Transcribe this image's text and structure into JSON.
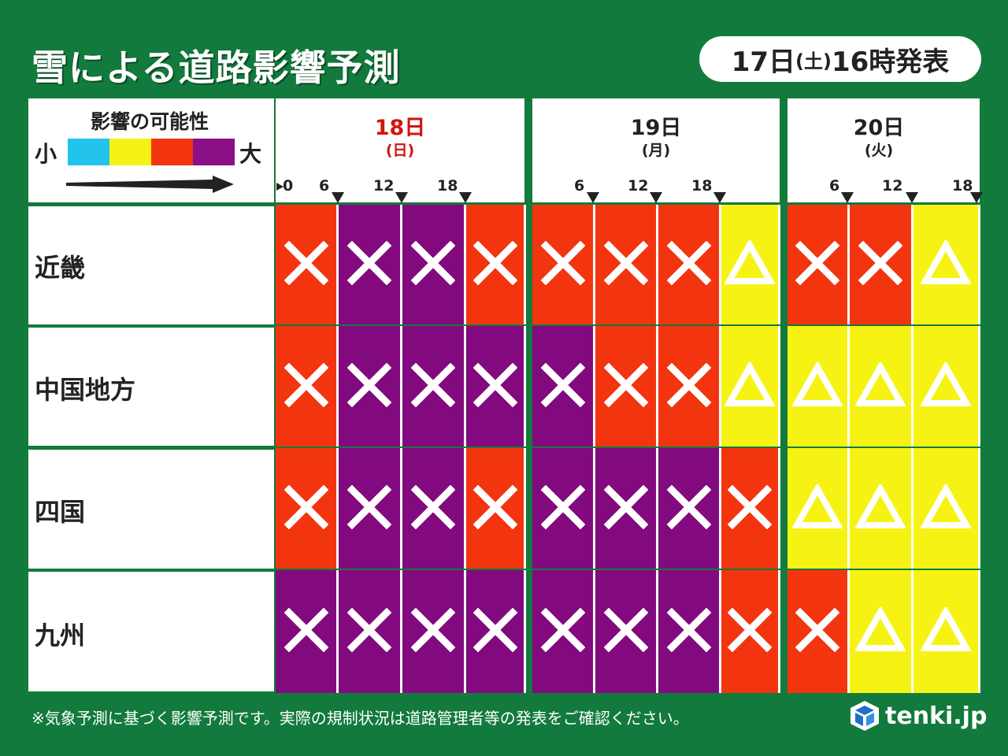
{
  "title": "雪による道路影響予測",
  "issued": {
    "day": "17日",
    "weekday": "(土)",
    "time": "16時発表"
  },
  "legend": {
    "title": "影響の可能性",
    "low_label": "小",
    "high_label": "大",
    "scale_colors": [
      "#22c4ee",
      "#f6f314",
      "#f2350f",
      "#8b0f86"
    ]
  },
  "colors": {
    "background": "#127a3c",
    "red": "#f2350f",
    "purple": "#820a7e",
    "yellow": "#f6f314",
    "mark": "#ffffff"
  },
  "chart_data": {
    "type": "heatmap",
    "title": "雪による道路影響予測",
    "days": [
      {
        "label": "18日",
        "weekday": "(日)",
        "label_color": "#d0150f",
        "ticks": [
          "0",
          "6",
          "12",
          "18"
        ]
      },
      {
        "label": "19日",
        "weekday": "(月)",
        "label_color": "#222222",
        "ticks": [
          "6",
          "12",
          "18"
        ]
      },
      {
        "label": "20日",
        "weekday": "(火)",
        "label_color": "#222222",
        "ticks": [
          "6",
          "12",
          "18"
        ]
      }
    ],
    "periods_per_day": [
      4,
      4,
      3
    ],
    "regions": [
      "近畿",
      "中国地方",
      "四国",
      "九州"
    ],
    "level_key": {
      "yellow": "△",
      "red": "×",
      "purple": "×"
    },
    "rows": [
      [
        "red",
        "purple",
        "purple",
        "red",
        "red",
        "red",
        "red",
        "yellow",
        "red",
        "red",
        "yellow"
      ],
      [
        "red",
        "purple",
        "purple",
        "purple",
        "purple",
        "red",
        "red",
        "yellow",
        "yellow",
        "yellow",
        "yellow"
      ],
      [
        "red",
        "purple",
        "purple",
        "red",
        "purple",
        "purple",
        "purple",
        "red",
        "yellow",
        "yellow",
        "yellow"
      ],
      [
        "purple",
        "purple",
        "purple",
        "purple",
        "purple",
        "purple",
        "purple",
        "red",
        "red",
        "yellow",
        "yellow"
      ]
    ],
    "marks": [
      [
        "×",
        "×",
        "×",
        "×",
        "×",
        "×",
        "×",
        "△",
        "×",
        "×",
        "△"
      ],
      [
        "×",
        "×",
        "×",
        "×",
        "×",
        "×",
        "×",
        "△",
        "△",
        "△",
        "△"
      ],
      [
        "×",
        "×",
        "×",
        "×",
        "×",
        "×",
        "×",
        "×",
        "△",
        "△",
        "△"
      ],
      [
        "×",
        "×",
        "×",
        "×",
        "×",
        "×",
        "×",
        "×",
        "×",
        "△",
        "△"
      ]
    ]
  },
  "footnote": "※気象予測に基づく影響予測です。実際の規制状況は道路管理者等の発表をご確認ください。",
  "logo": {
    "text": "tenki.jp"
  }
}
